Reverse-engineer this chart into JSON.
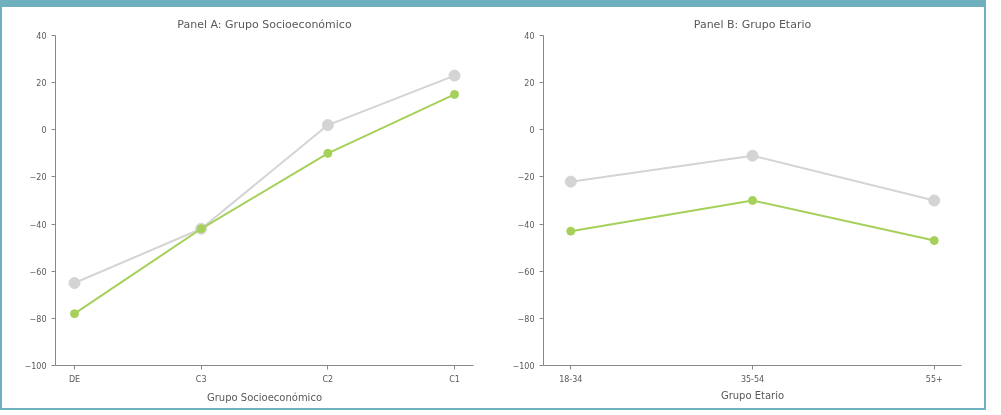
{
  "chart_data": [
    {
      "type": "line",
      "title": "Panel A: Grupo Socioeconómico",
      "xlabel": "Grupo Socioeconómico",
      "categories": [
        "DE",
        "C3",
        "C2",
        "C1"
      ],
      "series": [
        {
          "color": "#d4d4d4",
          "values": [
            -65,
            -42,
            2,
            23
          ]
        },
        {
          "color": "#a5d05a",
          "values": [
            -78,
            -42,
            -10,
            15
          ]
        }
      ],
      "ylim": [
        -100,
        40
      ],
      "yticks": [
        -100,
        -80,
        -60,
        -40,
        -20,
        0,
        20,
        40
      ],
      "grid": false,
      "marker": "circle",
      "line_style": "solid"
    },
    {
      "type": "line",
      "title": "Panel B: Grupo Etario",
      "xlabel": "Grupo Etario",
      "categories": [
        "18-34",
        "35-54",
        "55+"
      ],
      "series": [
        {
          "color": "#d4d4d4",
          "values": [
            -22,
            -11,
            -30
          ]
        },
        {
          "color": "#a5d05a",
          "values": [
            -43,
            -30,
            -47
          ]
        }
      ],
      "ylim": [
        -100,
        40
      ],
      "yticks": [
        -100,
        -80,
        -60,
        -40,
        -20,
        0,
        20,
        40
      ],
      "grid": false,
      "marker": "circle",
      "line_style": "solid"
    }
  ]
}
